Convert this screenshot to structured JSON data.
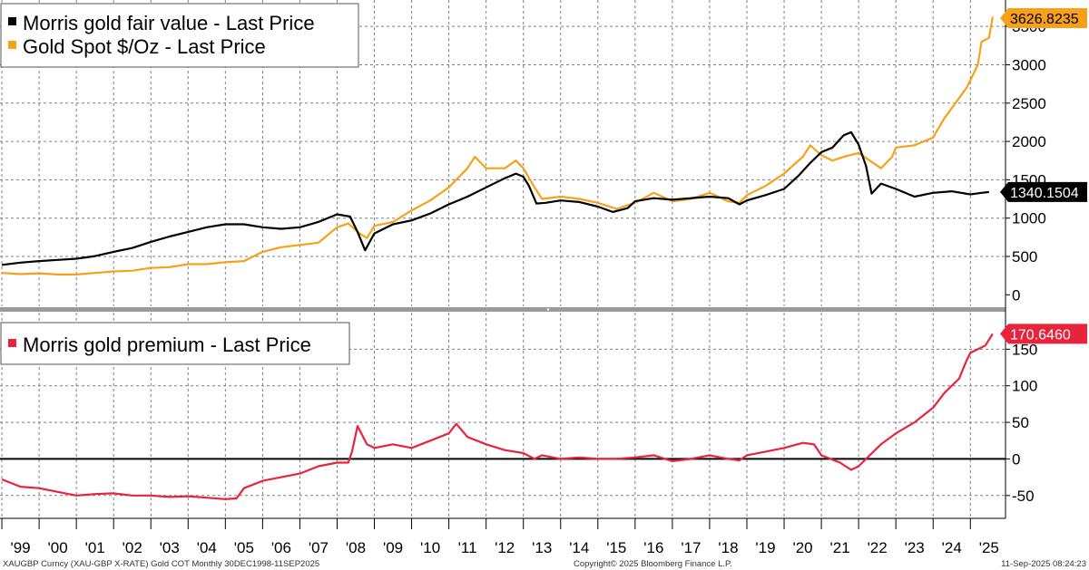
{
  "chart_data": [
    {
      "type": "line",
      "panel": "top",
      "ylim": [
        -150,
        3750
      ],
      "yticks": [
        0,
        500,
        1000,
        1500,
        2000,
        2500,
        3000,
        3500
      ],
      "x_range": [
        1998.95,
        2025.7
      ],
      "legend_position": "top-left",
      "series": [
        {
          "name": "Morris gold fair value - Last Price",
          "color": "#000000",
          "last_label": "1340.1504",
          "points": [
            [
              1999.0,
              390
            ],
            [
              1999.5,
              420
            ],
            [
              2000.0,
              440
            ],
            [
              2000.5,
              455
            ],
            [
              2001.0,
              470
            ],
            [
              2001.5,
              505
            ],
            [
              2002.0,
              560
            ],
            [
              2002.5,
              610
            ],
            [
              2003.0,
              690
            ],
            [
              2003.5,
              760
            ],
            [
              2004.0,
              820
            ],
            [
              2004.5,
              880
            ],
            [
              2005.0,
              920
            ],
            [
              2005.5,
              920
            ],
            [
              2006.0,
              880
            ],
            [
              2006.5,
              860
            ],
            [
              2007.0,
              880
            ],
            [
              2007.5,
              950
            ],
            [
              2008.0,
              1050
            ],
            [
              2008.35,
              1020
            ],
            [
              2008.55,
              820
            ],
            [
              2008.75,
              580
            ],
            [
              2009.0,
              800
            ],
            [
              2009.5,
              920
            ],
            [
              2010.0,
              970
            ],
            [
              2010.5,
              1060
            ],
            [
              2011.0,
              1180
            ],
            [
              2011.5,
              1280
            ],
            [
              2012.0,
              1400
            ],
            [
              2012.5,
              1520
            ],
            [
              2012.8,
              1580
            ],
            [
              2013.0,
              1540
            ],
            [
              2013.15,
              1420
            ],
            [
              2013.35,
              1190
            ],
            [
              2013.6,
              1200
            ],
            [
              2014.0,
              1230
            ],
            [
              2014.5,
              1210
            ],
            [
              2015.0,
              1150
            ],
            [
              2015.4,
              1080
            ],
            [
              2015.8,
              1130
            ],
            [
              2016.0,
              1220
            ],
            [
              2016.5,
              1260
            ],
            [
              2017.0,
              1240
            ],
            [
              2017.5,
              1260
            ],
            [
              2018.0,
              1280
            ],
            [
              2018.5,
              1260
            ],
            [
              2018.8,
              1180
            ],
            [
              2019.0,
              1230
            ],
            [
              2019.5,
              1300
            ],
            [
              2020.0,
              1380
            ],
            [
              2020.4,
              1560
            ],
            [
              2020.7,
              1720
            ],
            [
              2021.0,
              1860
            ],
            [
              2021.3,
              1920
            ],
            [
              2021.6,
              2080
            ],
            [
              2021.8,
              2120
            ],
            [
              2022.0,
              1960
            ],
            [
              2022.2,
              1680
            ],
            [
              2022.35,
              1320
            ],
            [
              2022.6,
              1450
            ],
            [
              2023.0,
              1380
            ],
            [
              2023.5,
              1280
            ],
            [
              2024.0,
              1330
            ],
            [
              2024.5,
              1350
            ],
            [
              2025.0,
              1310
            ],
            [
              2025.3,
              1330
            ],
            [
              2025.5,
              1340
            ]
          ]
        },
        {
          "name": "Gold Spot $/Oz - Last Price",
          "color": "#f7a11a",
          "last_label": "3626.8235",
          "points": [
            [
              1999.0,
              285
            ],
            [
              1999.5,
              270
            ],
            [
              2000.0,
              280
            ],
            [
              2000.5,
              265
            ],
            [
              2001.0,
              265
            ],
            [
              2001.5,
              285
            ],
            [
              2002.0,
              305
            ],
            [
              2002.5,
              315
            ],
            [
              2003.0,
              350
            ],
            [
              2003.5,
              360
            ],
            [
              2004.0,
              400
            ],
            [
              2004.5,
              400
            ],
            [
              2005.0,
              425
            ],
            [
              2005.5,
              440
            ],
            [
              2006.0,
              560
            ],
            [
              2006.5,
              620
            ],
            [
              2007.0,
              650
            ],
            [
              2007.5,
              680
            ],
            [
              2008.0,
              880
            ],
            [
              2008.3,
              930
            ],
            [
              2008.6,
              800
            ],
            [
              2008.8,
              740
            ],
            [
              2009.0,
              900
            ],
            [
              2009.5,
              950
            ],
            [
              2010.0,
              1100
            ],
            [
              2010.5,
              1230
            ],
            [
              2011.0,
              1400
            ],
            [
              2011.5,
              1650
            ],
            [
              2011.7,
              1800
            ],
            [
              2012.0,
              1650
            ],
            [
              2012.5,
              1650
            ],
            [
              2012.8,
              1750
            ],
            [
              2013.0,
              1650
            ],
            [
              2013.3,
              1400
            ],
            [
              2013.5,
              1250
            ],
            [
              2014.0,
              1280
            ],
            [
              2014.5,
              1250
            ],
            [
              2015.0,
              1200
            ],
            [
              2015.5,
              1120
            ],
            [
              2016.0,
              1200
            ],
            [
              2016.5,
              1330
            ],
            [
              2017.0,
              1220
            ],
            [
              2017.5,
              1250
            ],
            [
              2018.0,
              1330
            ],
            [
              2018.5,
              1220
            ],
            [
              2018.8,
              1200
            ],
            [
              2019.0,
              1300
            ],
            [
              2019.5,
              1420
            ],
            [
              2020.0,
              1580
            ],
            [
              2020.5,
              1800
            ],
            [
              2020.7,
              1950
            ],
            [
              2021.0,
              1820
            ],
            [
              2021.3,
              1750
            ],
            [
              2021.6,
              1800
            ],
            [
              2022.0,
              1850
            ],
            [
              2022.3,
              1750
            ],
            [
              2022.6,
              1650
            ],
            [
              2022.9,
              1800
            ],
            [
              2023.0,
              1920
            ],
            [
              2023.5,
              1950
            ],
            [
              2024.0,
              2050
            ],
            [
              2024.3,
              2300
            ],
            [
              2024.6,
              2500
            ],
            [
              2024.9,
              2700
            ],
            [
              2025.0,
              2800
            ],
            [
              2025.2,
              3000
            ],
            [
              2025.3,
              3300
            ],
            [
              2025.5,
              3350
            ],
            [
              2025.6,
              3627
            ]
          ]
        }
      ]
    },
    {
      "type": "line",
      "panel": "bottom",
      "ylim": [
        -80,
        200
      ],
      "yticks": [
        -50,
        0,
        50,
        100,
        150
      ],
      "x_range": [
        1998.95,
        2025.7
      ],
      "legend_position": "top-left",
      "zero_line": true,
      "series": [
        {
          "name": "Morris gold premium - Last Price",
          "color": "#e8243d",
          "last_label": "170.6460",
          "points": [
            [
              1999.0,
              -28
            ],
            [
              1999.5,
              -38
            ],
            [
              2000.0,
              -40
            ],
            [
              2000.5,
              -45
            ],
            [
              2001.0,
              -50
            ],
            [
              2001.5,
              -48
            ],
            [
              2002.0,
              -47
            ],
            [
              2002.5,
              -50
            ],
            [
              2003.0,
              -50
            ],
            [
              2003.5,
              -52
            ],
            [
              2004.0,
              -51
            ],
            [
              2004.5,
              -53
            ],
            [
              2005.0,
              -55
            ],
            [
              2005.3,
              -54
            ],
            [
              2005.5,
              -40
            ],
            [
              2006.0,
              -30
            ],
            [
              2006.5,
              -25
            ],
            [
              2007.0,
              -20
            ],
            [
              2007.5,
              -10
            ],
            [
              2008.0,
              -5
            ],
            [
              2008.3,
              -5
            ],
            [
              2008.4,
              10
            ],
            [
              2008.55,
              45
            ],
            [
              2008.8,
              20
            ],
            [
              2009.0,
              15
            ],
            [
              2009.5,
              20
            ],
            [
              2010.0,
              15
            ],
            [
              2010.5,
              25
            ],
            [
              2011.0,
              35
            ],
            [
              2011.2,
              48
            ],
            [
              2011.5,
              30
            ],
            [
              2012.0,
              20
            ],
            [
              2012.5,
              12
            ],
            [
              2013.0,
              8
            ],
            [
              2013.3,
              0
            ],
            [
              2013.5,
              5
            ],
            [
              2014.0,
              0
            ],
            [
              2014.5,
              2
            ],
            [
              2015.0,
              0
            ],
            [
              2015.5,
              0
            ],
            [
              2016.0,
              2
            ],
            [
              2016.5,
              5
            ],
            [
              2017.0,
              -3
            ],
            [
              2017.5,
              0
            ],
            [
              2018.0,
              5
            ],
            [
              2018.5,
              0
            ],
            [
              2018.8,
              -2
            ],
            [
              2019.0,
              5
            ],
            [
              2019.5,
              10
            ],
            [
              2020.0,
              15
            ],
            [
              2020.5,
              22
            ],
            [
              2020.8,
              20
            ],
            [
              2021.0,
              5
            ],
            [
              2021.5,
              -5
            ],
            [
              2021.8,
              -15
            ],
            [
              2022.0,
              -10
            ],
            [
              2022.2,
              0
            ],
            [
              2022.4,
              10
            ],
            [
              2022.6,
              20
            ],
            [
              2023.0,
              35
            ],
            [
              2023.5,
              50
            ],
            [
              2024.0,
              70
            ],
            [
              2024.3,
              90
            ],
            [
              2024.7,
              110
            ],
            [
              2024.9,
              135
            ],
            [
              2025.0,
              145
            ],
            [
              2025.2,
              150
            ],
            [
              2025.4,
              155
            ],
            [
              2025.6,
              171
            ]
          ]
        }
      ]
    }
  ],
  "x_tick_labels": [
    "'99",
    "'00",
    "'01",
    "'02",
    "'03",
    "'04",
    "'05",
    "'06",
    "'07",
    "'08",
    "'09",
    "'10",
    "'11",
    "'12",
    "'13",
    "'14",
    "'15",
    "'16",
    "'17",
    "'18",
    "'19",
    "'20",
    "'21",
    "'22",
    "'23",
    "'24",
    "'25"
  ],
  "footer": {
    "left": "XAUGBP Curncy (XAU-GBP X-RATE) Gold COT  Monthly 30DEC1998-11SEP2025",
    "center": "Copyright© 2025 Bloomberg Finance L.P.",
    "right": "11-Sep-2025 08:24:23"
  },
  "colors": {
    "fair_value": "#000000",
    "spot": "#f7a11a",
    "premium": "#e8243d"
  }
}
